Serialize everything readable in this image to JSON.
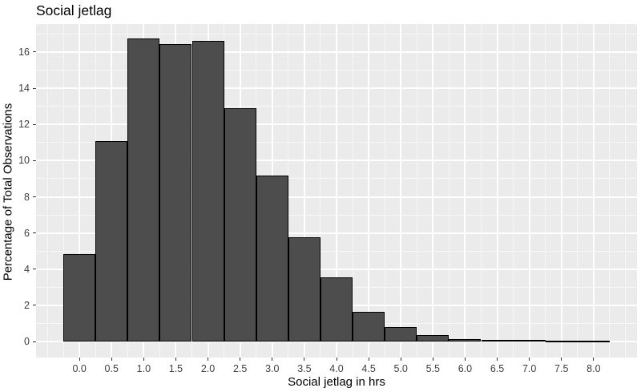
{
  "chart_data": {
    "type": "bar",
    "subtype": "histogram",
    "title": "Social jetlag",
    "xlabel": "Social jetlag in hrs",
    "ylabel": "Percentage of Total Observations",
    "bin_width": 0.5,
    "categories": [
      0.0,
      0.5,
      1.0,
      1.5,
      2.0,
      2.5,
      3.0,
      3.5,
      4.0,
      4.5,
      5.0,
      5.5,
      6.0,
      6.5,
      7.0,
      7.5,
      8.0
    ],
    "values": [
      4.85,
      11.1,
      16.75,
      16.45,
      16.6,
      12.9,
      9.2,
      5.75,
      3.55,
      1.65,
      0.8,
      0.35,
      0.16,
      0.09,
      0.09,
      0.05,
      0.06
    ],
    "x_tick_values": [
      0.0,
      0.5,
      1.0,
      1.5,
      2.0,
      2.5,
      3.0,
      3.5,
      4.0,
      4.5,
      5.0,
      5.5,
      6.0,
      6.5,
      7.0,
      7.5,
      8.0
    ],
    "x_tick_labels": [
      "0.0",
      "0.5",
      "1.0",
      "1.5",
      "2.0",
      "2.5",
      "3.0",
      "3.5",
      "4.0",
      "4.5",
      "5.0",
      "5.5",
      "6.0",
      "6.5",
      "7.0",
      "7.5",
      "8.0"
    ],
    "y_tick_values": [
      0,
      2,
      4,
      6,
      8,
      10,
      12,
      14,
      16
    ],
    "y_tick_labels": [
      "0",
      "2",
      "4",
      "6",
      "8",
      "10",
      "12",
      "14",
      "16"
    ],
    "xlim": [
      -0.675,
      8.675
    ],
    "ylim": [
      -0.88,
      17.55
    ],
    "x_minor_step": 0.25,
    "y_minor_step": 1,
    "grid": "major-and-minor",
    "legend": "none",
    "style": {
      "panel_bg": "#ebebeb",
      "grid_major_color": "#ffffff",
      "grid_minor_color": "#f7f7f7",
      "bar_fill": "#4d4d4d",
      "bar_stroke": "#000000",
      "tick_mark_color": "#333333",
      "tick_label_color": "#404040",
      "title_color": "#000000"
    }
  }
}
